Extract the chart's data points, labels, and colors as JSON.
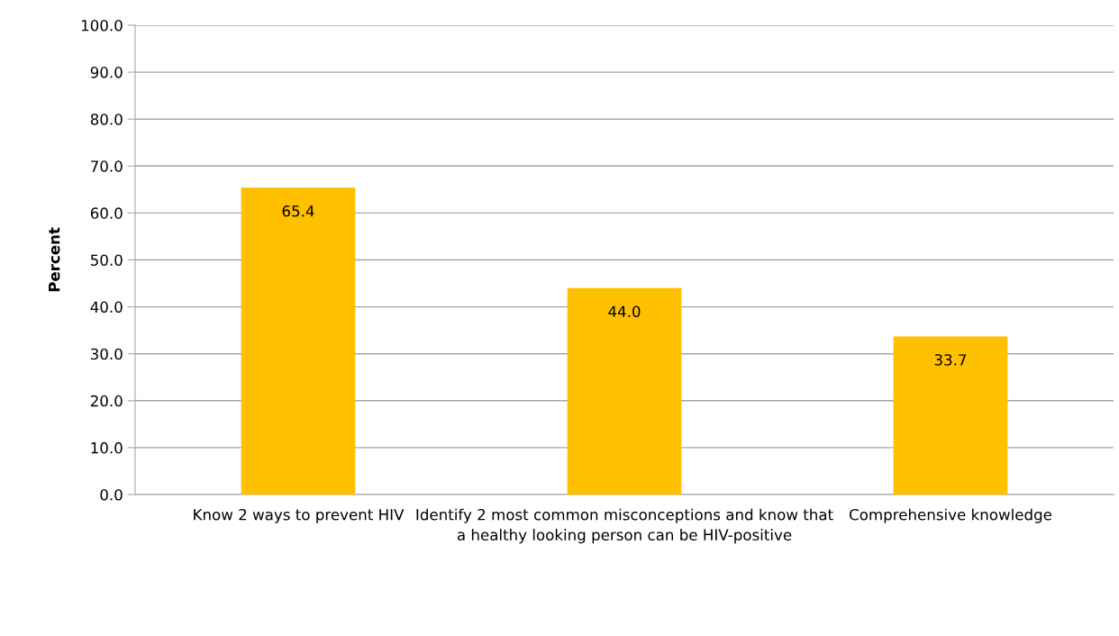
{
  "chart_data": {
    "type": "bar",
    "ylabel": "Percent",
    "categories": [
      "Know 2 ways to prevent HIV",
      "Identify 2 most common misconceptions and know that a healthy looking person can be HIV-positive",
      "Comprehensive knowledge"
    ],
    "values": [
      65.4,
      44.0,
      33.7
    ],
    "value_labels": [
      "65.4",
      "44.0",
      "33.7"
    ],
    "color": "#ffc000",
    "ylim": [
      0,
      100
    ],
    "yticks": [
      {
        "value": 0,
        "label": "0.0"
      },
      {
        "value": 10,
        "label": "10.0"
      },
      {
        "value": 20,
        "label": "20.0"
      },
      {
        "value": 30,
        "label": "30.0"
      },
      {
        "value": 40,
        "label": "40.0"
      },
      {
        "value": 50,
        "label": "50.0"
      },
      {
        "value": 60,
        "label": "60.0"
      },
      {
        "value": 70,
        "label": "70.0"
      },
      {
        "value": 80,
        "label": "80.0"
      },
      {
        "value": 90,
        "label": "90.0"
      },
      {
        "value": 100,
        "label": "100.0"
      }
    ],
    "grid": "y",
    "legend": false
  }
}
